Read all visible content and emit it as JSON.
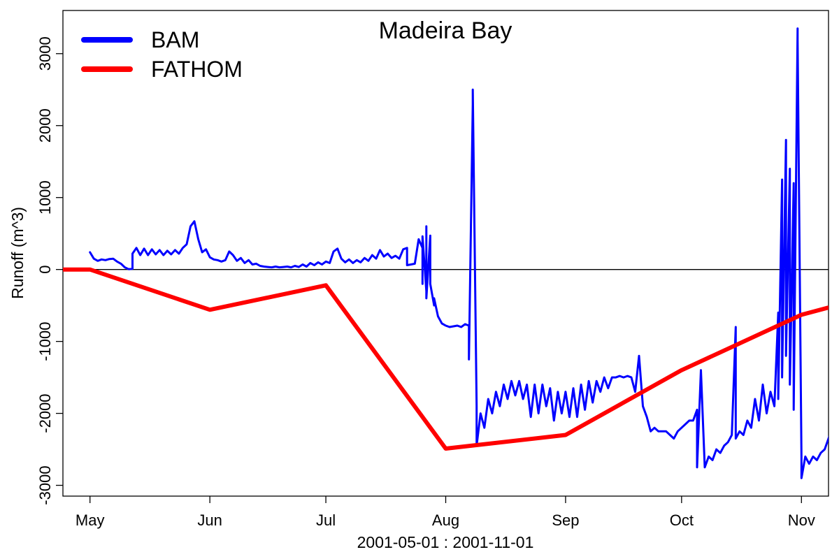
{
  "chart_data": {
    "type": "line",
    "title": "Madeira Bay",
    "xlabel": "2001-05-01 : 2001-11-01",
    "ylabel": "Runoff (m^3)",
    "x_ticks": [
      {
        "date": "2001-05-01",
        "label": "May"
      },
      {
        "date": "2001-06-01",
        "label": "Jun"
      },
      {
        "date": "2001-07-01",
        "label": "Jul"
      },
      {
        "date": "2001-08-01",
        "label": "Aug"
      },
      {
        "date": "2001-09-01",
        "label": "Sep"
      },
      {
        "date": "2001-10-01",
        "label": "Oct"
      },
      {
        "date": "2001-11-01",
        "label": "Nov"
      }
    ],
    "xlim": [
      "2001-04-24",
      "2001-11-08"
    ],
    "y_ticks": [
      -3000,
      -2000,
      -1000,
      0,
      1000,
      2000,
      3000
    ],
    "ylim": [
      -3150,
      3600
    ],
    "zero_line": true,
    "grid": false,
    "legend_position": "top-left",
    "series": [
      {
        "name": "BAM",
        "color": "#0000ff",
        "points": [
          [
            "2001-05-01",
            240
          ],
          [
            "2001-05-02",
            150
          ],
          [
            "2001-05-03",
            120
          ],
          [
            "2001-05-04",
            140
          ],
          [
            "2001-05-05",
            130
          ],
          [
            "2001-05-06",
            145
          ],
          [
            "2001-05-07",
            150
          ],
          [
            "2001-05-08",
            110
          ],
          [
            "2001-05-09",
            80
          ],
          [
            "2001-05-10",
            30
          ],
          [
            "2001-05-11",
            5
          ],
          [
            "2001-05-12",
            10
          ],
          [
            "2001-05-12",
            220
          ],
          [
            "2001-05-13",
            300
          ],
          [
            "2001-05-14",
            200
          ],
          [
            "2001-05-15",
            290
          ],
          [
            "2001-05-16",
            200
          ],
          [
            "2001-05-17",
            280
          ],
          [
            "2001-05-18",
            210
          ],
          [
            "2001-05-19",
            270
          ],
          [
            "2001-05-20",
            200
          ],
          [
            "2001-05-21",
            260
          ],
          [
            "2001-05-22",
            210
          ],
          [
            "2001-05-23",
            270
          ],
          [
            "2001-05-24",
            220
          ],
          [
            "2001-05-25",
            300
          ],
          [
            "2001-05-26",
            350
          ],
          [
            "2001-05-27",
            600
          ],
          [
            "2001-05-28",
            670
          ],
          [
            "2001-05-29",
            420
          ],
          [
            "2001-05-30",
            240
          ],
          [
            "2001-05-31",
            280
          ],
          [
            "2001-06-01",
            170
          ],
          [
            "2001-06-02",
            140
          ],
          [
            "2001-06-03",
            130
          ],
          [
            "2001-06-04",
            110
          ],
          [
            "2001-06-05",
            130
          ],
          [
            "2001-06-06",
            250
          ],
          [
            "2001-06-07",
            200
          ],
          [
            "2001-06-08",
            120
          ],
          [
            "2001-06-09",
            160
          ],
          [
            "2001-06-10",
            90
          ],
          [
            "2001-06-11",
            130
          ],
          [
            "2001-06-12",
            70
          ],
          [
            "2001-06-13",
            80
          ],
          [
            "2001-06-14",
            50
          ],
          [
            "2001-06-15",
            40
          ],
          [
            "2001-06-16",
            35
          ],
          [
            "2001-06-17",
            30
          ],
          [
            "2001-06-18",
            40
          ],
          [
            "2001-06-19",
            30
          ],
          [
            "2001-06-20",
            35
          ],
          [
            "2001-06-21",
            40
          ],
          [
            "2001-06-22",
            30
          ],
          [
            "2001-06-23",
            50
          ],
          [
            "2001-06-24",
            35
          ],
          [
            "2001-06-25",
            70
          ],
          [
            "2001-06-26",
            40
          ],
          [
            "2001-06-27",
            90
          ],
          [
            "2001-06-28",
            60
          ],
          [
            "2001-06-29",
            100
          ],
          [
            "2001-06-30",
            70
          ],
          [
            "2001-07-01",
            110
          ],
          [
            "2001-07-02",
            90
          ],
          [
            "2001-07-03",
            250
          ],
          [
            "2001-07-04",
            290
          ],
          [
            "2001-07-05",
            150
          ],
          [
            "2001-07-06",
            100
          ],
          [
            "2001-07-07",
            140
          ],
          [
            "2001-07-08",
            90
          ],
          [
            "2001-07-09",
            130
          ],
          [
            "2001-07-10",
            100
          ],
          [
            "2001-07-11",
            160
          ],
          [
            "2001-07-12",
            120
          ],
          [
            "2001-07-13",
            200
          ],
          [
            "2001-07-14",
            150
          ],
          [
            "2001-07-15",
            270
          ],
          [
            "2001-07-16",
            180
          ],
          [
            "2001-07-17",
            220
          ],
          [
            "2001-07-18",
            160
          ],
          [
            "2001-07-19",
            190
          ],
          [
            "2001-07-20",
            150
          ],
          [
            "2001-07-21",
            280
          ],
          [
            "2001-07-22",
            300
          ],
          [
            "2001-07-22",
            60
          ],
          [
            "2001-07-23",
            70
          ],
          [
            "2001-07-24",
            80
          ],
          [
            "2001-07-25",
            420
          ],
          [
            "2001-07-26",
            300
          ],
          [
            "2001-07-26",
            -200
          ],
          [
            "2001-07-26",
            460
          ],
          [
            "2001-07-27",
            -300
          ],
          [
            "2001-07-27",
            600
          ],
          [
            "2001-07-27",
            -400
          ],
          [
            "2001-07-28",
            470
          ],
          [
            "2001-07-28",
            -200
          ],
          [
            "2001-07-29",
            -500
          ],
          [
            "2001-07-29",
            -400
          ],
          [
            "2001-07-30",
            -650
          ],
          [
            "2001-07-31",
            -750
          ],
          [
            "2001-08-01",
            -780
          ],
          [
            "2001-08-02",
            -800
          ],
          [
            "2001-08-03",
            -790
          ],
          [
            "2001-08-04",
            -780
          ],
          [
            "2001-08-05",
            -800
          ],
          [
            "2001-08-06",
            -760
          ],
          [
            "2001-08-07",
            -780
          ],
          [
            "2001-08-07",
            -1250
          ],
          [
            "2001-08-08",
            2300
          ],
          [
            "2001-08-08",
            2500
          ],
          [
            "2001-08-09",
            -1900
          ],
          [
            "2001-08-09",
            -2450
          ],
          [
            "2001-08-10",
            -2000
          ],
          [
            "2001-08-11",
            -2200
          ],
          [
            "2001-08-12",
            -1800
          ],
          [
            "2001-08-13",
            -2000
          ],
          [
            "2001-08-14",
            -1700
          ],
          [
            "2001-08-15",
            -1900
          ],
          [
            "2001-08-16",
            -1600
          ],
          [
            "2001-08-17",
            -1800
          ],
          [
            "2001-08-18",
            -1550
          ],
          [
            "2001-08-19",
            -1750
          ],
          [
            "2001-08-20",
            -1550
          ],
          [
            "2001-08-21",
            -1800
          ],
          [
            "2001-08-22",
            -1600
          ],
          [
            "2001-08-23",
            -2050
          ],
          [
            "2001-08-24",
            -1600
          ],
          [
            "2001-08-25",
            -2000
          ],
          [
            "2001-08-26",
            -1600
          ],
          [
            "2001-08-27",
            -1900
          ],
          [
            "2001-08-28",
            -1650
          ],
          [
            "2001-08-29",
            -2100
          ],
          [
            "2001-08-30",
            -1700
          ],
          [
            "2001-08-31",
            -2000
          ],
          [
            "2001-09-01",
            -1700
          ],
          [
            "2001-09-02",
            -2050
          ],
          [
            "2001-09-03",
            -1650
          ],
          [
            "2001-09-04",
            -2050
          ],
          [
            "2001-09-05",
            -1600
          ],
          [
            "2001-09-06",
            -1950
          ],
          [
            "2001-09-07",
            -1550
          ],
          [
            "2001-09-08",
            -1850
          ],
          [
            "2001-09-09",
            -1550
          ],
          [
            "2001-09-10",
            -1700
          ],
          [
            "2001-09-11",
            -1500
          ],
          [
            "2001-09-12",
            -1650
          ],
          [
            "2001-09-13",
            -1500
          ],
          [
            "2001-09-14",
            -1500
          ],
          [
            "2001-09-15",
            -1480
          ],
          [
            "2001-09-16",
            -1500
          ],
          [
            "2001-09-17",
            -1480
          ],
          [
            "2001-09-18",
            -1500
          ],
          [
            "2001-09-19",
            -1700
          ],
          [
            "2001-09-20",
            -1200
          ],
          [
            "2001-09-21",
            -1900
          ],
          [
            "2001-09-22",
            -2050
          ],
          [
            "2001-09-23",
            -2250
          ],
          [
            "2001-09-24",
            -2200
          ],
          [
            "2001-09-25",
            -2250
          ],
          [
            "2001-09-26",
            -2250
          ],
          [
            "2001-09-27",
            -2250
          ],
          [
            "2001-09-28",
            -2300
          ],
          [
            "2001-09-29",
            -2350
          ],
          [
            "2001-09-30",
            -2250
          ],
          [
            "2001-10-01",
            -2200
          ],
          [
            "2001-10-02",
            -2150
          ],
          [
            "2001-10-03",
            -2100
          ],
          [
            "2001-10-04",
            -2100
          ],
          [
            "2001-10-05",
            -1950
          ],
          [
            "2001-10-05",
            -2750
          ],
          [
            "2001-10-06",
            -1400
          ],
          [
            "2001-10-07",
            -2750
          ],
          [
            "2001-10-08",
            -2600
          ],
          [
            "2001-10-09",
            -2650
          ],
          [
            "2001-10-10",
            -2500
          ],
          [
            "2001-10-11",
            -2550
          ],
          [
            "2001-10-12",
            -2450
          ],
          [
            "2001-10-13",
            -2400
          ],
          [
            "2001-10-14",
            -2300
          ],
          [
            "2001-10-15",
            -800
          ],
          [
            "2001-10-15",
            -2350
          ],
          [
            "2001-10-16",
            -2250
          ],
          [
            "2001-10-17",
            -2300
          ],
          [
            "2001-10-18",
            -2100
          ],
          [
            "2001-10-19",
            -2200
          ],
          [
            "2001-10-20",
            -1800
          ],
          [
            "2001-10-21",
            -2100
          ],
          [
            "2001-10-22",
            -1600
          ],
          [
            "2001-10-23",
            -2000
          ],
          [
            "2001-10-24",
            -1700
          ],
          [
            "2001-10-25",
            -1900
          ],
          [
            "2001-10-26",
            -600
          ],
          [
            "2001-10-26",
            -1800
          ],
          [
            "2001-10-27",
            1250
          ],
          [
            "2001-10-27",
            -1500
          ],
          [
            "2001-10-28",
            1800
          ],
          [
            "2001-10-28",
            -1200
          ],
          [
            "2001-10-29",
            1400
          ],
          [
            "2001-10-29",
            -1600
          ],
          [
            "2001-10-30",
            1200
          ],
          [
            "2001-10-30",
            -1950
          ],
          [
            "2001-10-31",
            3350
          ],
          [
            "2001-10-31",
            3200
          ],
          [
            "2001-11-01",
            -2600
          ],
          [
            "2001-11-01",
            -2900
          ],
          [
            "2001-11-02",
            -2600
          ],
          [
            "2001-11-03",
            -2700
          ],
          [
            "2001-11-04",
            -2600
          ],
          [
            "2001-11-05",
            -2650
          ],
          [
            "2001-11-06",
            -2550
          ],
          [
            "2001-11-07",
            -2500
          ],
          [
            "2001-11-08",
            -2350
          ],
          [
            "2001-11-09",
            -2200
          ],
          [
            "2001-11-10",
            -2100
          ],
          [
            "2001-11-11",
            -2200
          ],
          [
            "2001-11-11",
            -1800
          ]
        ]
      },
      {
        "name": "FATHOM",
        "color": "#ff0000",
        "points": [
          [
            "2001-04-24",
            0
          ],
          [
            "2001-05-01",
            0
          ],
          [
            "2001-06-01",
            -560
          ],
          [
            "2001-07-01",
            -220
          ],
          [
            "2001-08-01",
            -2490
          ],
          [
            "2001-09-01",
            -2300
          ],
          [
            "2001-10-01",
            -1400
          ],
          [
            "2001-11-01",
            -630
          ],
          [
            "2001-11-08",
            -530
          ]
        ]
      }
    ]
  }
}
